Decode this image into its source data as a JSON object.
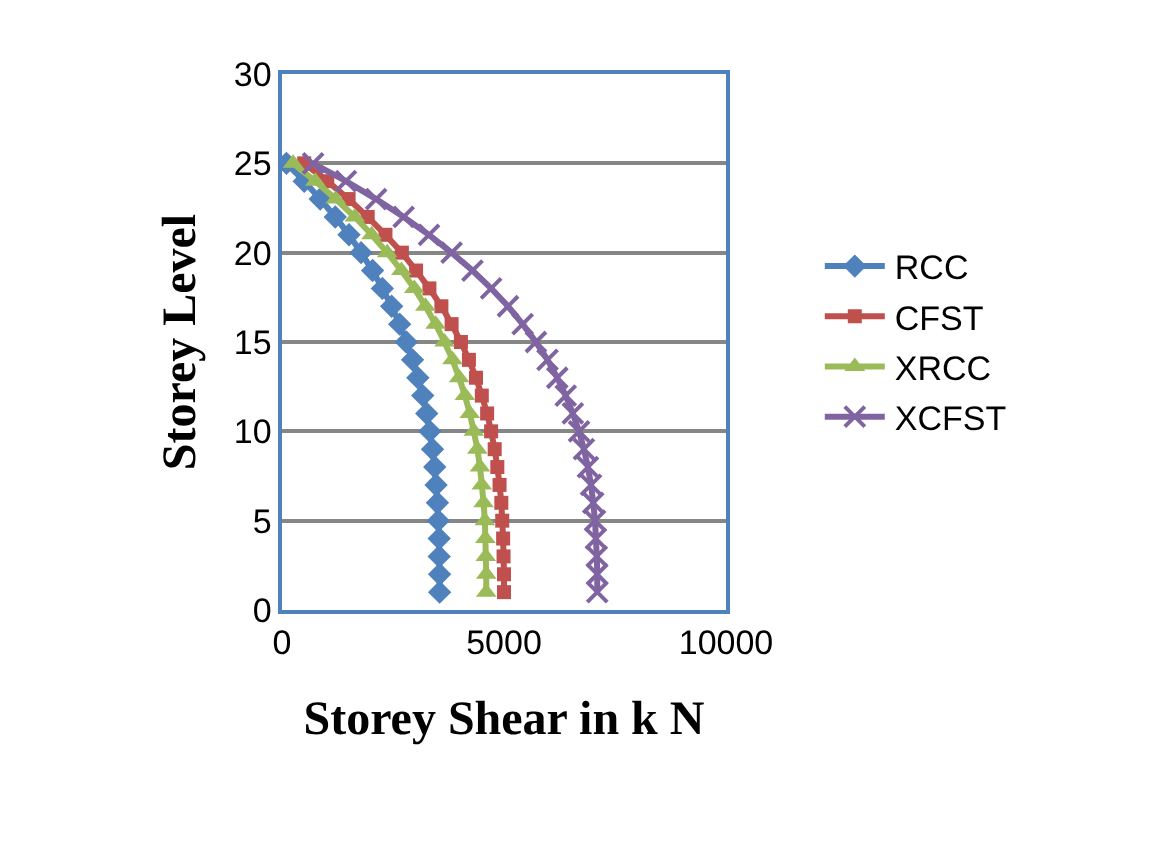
{
  "chart_data": {
    "type": "line",
    "xlabel": "Storey Shear in k N",
    "ylabel": "Storey Level",
    "xlim": [
      0,
      10000
    ],
    "xticks": [
      0,
      5000,
      10000
    ],
    "ylim": [
      0,
      30
    ],
    "yticks": [
      0,
      5,
      10,
      15,
      20,
      25,
      30
    ],
    "grid": "y",
    "legend": "right",
    "line_style": "solid",
    "series": [
      {
        "name": "RCC",
        "color": "#4f81bd",
        "marker": "diamond",
        "x": [
          3550,
          3550,
          3540,
          3540,
          3520,
          3500,
          3470,
          3440,
          3390,
          3330,
          3260,
          3170,
          3060,
          2940,
          2800,
          2650,
          2470,
          2260,
          2040,
          1780,
          1510,
          1200,
          860,
          500,
          100
        ],
        "values": [
          1,
          2,
          3,
          4,
          5,
          6,
          7,
          8,
          9,
          10,
          11,
          12,
          13,
          14,
          15,
          16,
          17,
          18,
          19,
          20,
          21,
          22,
          23,
          24,
          25
        ]
      },
      {
        "name": "CFST",
        "color": "#c0504d",
        "marker": "square",
        "x": [
          5000,
          5000,
          4990,
          4980,
          4960,
          4940,
          4900,
          4850,
          4790,
          4710,
          4620,
          4500,
          4370,
          4210,
          4030,
          3820,
          3590,
          3320,
          3020,
          2700,
          2330,
          1930,
          1500,
          1020,
          500
        ],
        "values": [
          1,
          2,
          3,
          4,
          5,
          6,
          7,
          8,
          9,
          10,
          11,
          12,
          13,
          14,
          15,
          16,
          17,
          18,
          19,
          20,
          21,
          22,
          23,
          24,
          25
        ]
      },
      {
        "name": "XRCC",
        "color": "#9bbb59",
        "marker": "triangle",
        "x": [
          4600,
          4600,
          4590,
          4580,
          4570,
          4540,
          4500,
          4460,
          4400,
          4320,
          4230,
          4120,
          3990,
          3840,
          3660,
          3460,
          3230,
          2980,
          2690,
          2370,
          2020,
          1640,
          1210,
          750,
          250
        ],
        "values": [
          1,
          2,
          3,
          4,
          5,
          6,
          7,
          8,
          9,
          10,
          11,
          12,
          13,
          14,
          15,
          16,
          17,
          18,
          19,
          20,
          21,
          22,
          23,
          24,
          25
        ]
      },
      {
        "name": "XCFST",
        "color": "#8064a2",
        "marker": "cross",
        "x": [
          7100,
          7100,
          7090,
          7070,
          7050,
          7010,
          6960,
          6890,
          6800,
          6690,
          6550,
          6390,
          6200,
          5980,
          5720,
          5420,
          5090,
          4710,
          4290,
          3820,
          3310,
          2740,
          2120,
          1440,
          700
        ],
        "values": [
          1,
          2,
          3,
          4,
          5,
          6,
          7,
          8,
          9,
          10,
          11,
          12,
          13,
          14,
          15,
          16,
          17,
          18,
          19,
          20,
          21,
          22,
          23,
          24,
          25
        ]
      }
    ]
  }
}
